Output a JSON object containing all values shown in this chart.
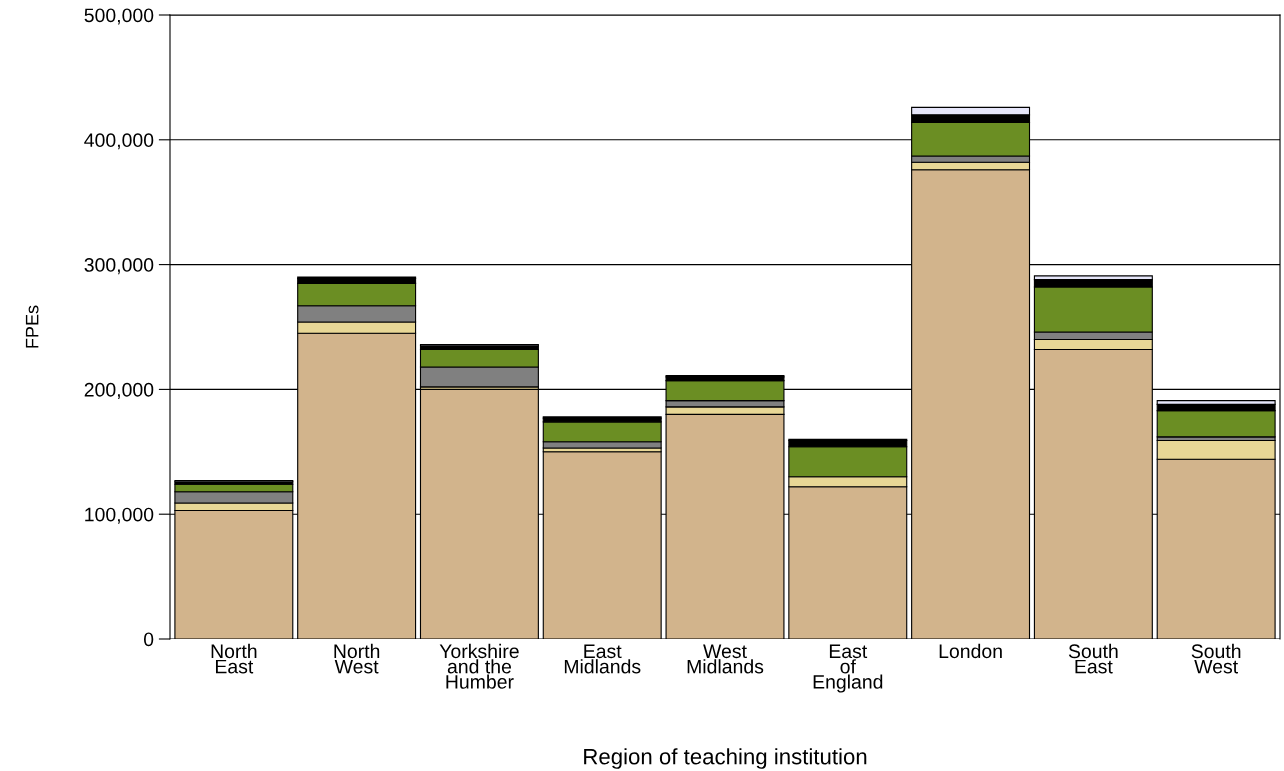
{
  "chart_data": {
    "type": "bar",
    "stacked": true,
    "xlabel": "Region of teaching institution",
    "ylabel": "FPEs",
    "categories": [
      "North\nEast",
      "North\nWest",
      "Yorkshire\nand the\nHumber",
      "East\nMidlands",
      "West\nMidlands",
      "East\nof\nEngland",
      "London",
      "South\nEast",
      "South\nWest"
    ],
    "series": [
      {
        "color": "#d2b48c",
        "values": [
          103000,
          245000,
          200000,
          150000,
          180000,
          122000,
          376000,
          232000,
          144000
        ]
      },
      {
        "color": "#e8d796",
        "values": [
          6000,
          9000,
          2000,
          3000,
          6000,
          8000,
          6000,
          8000,
          15000
        ]
      },
      {
        "color": "#808080",
        "values": [
          9000,
          13000,
          16000,
          5000,
          5000,
          null,
          5000,
          6000,
          3000
        ]
      },
      {
        "color": "#6b8e23",
        "values": [
          6000,
          18000,
          14000,
          16000,
          16000,
          24000,
          27000,
          36000,
          21000
        ]
      },
      {
        "color": "#000000",
        "values": [
          2000,
          4000,
          3000,
          3000,
          3000,
          5000,
          6000,
          6000,
          5000
        ]
      },
      {
        "color": "#e6e6fa",
        "values": [
          1000,
          1000,
          1000,
          1000,
          1000,
          1000,
          6000,
          3000,
          3000
        ]
      }
    ],
    "ylim": [
      0,
      500000
    ],
    "yticks": [
      0,
      {
        "value": 100000,
        "label": "100,000"
      },
      {
        "value": 200000,
        "label": "200,000"
      },
      {
        "value": 300000,
        "label": "300,000"
      },
      {
        "value": 400000,
        "label": "400,000"
      },
      {
        "value": 500000,
        "label": "500,000"
      }
    ],
    "grid": "y",
    "legend": false
  }
}
